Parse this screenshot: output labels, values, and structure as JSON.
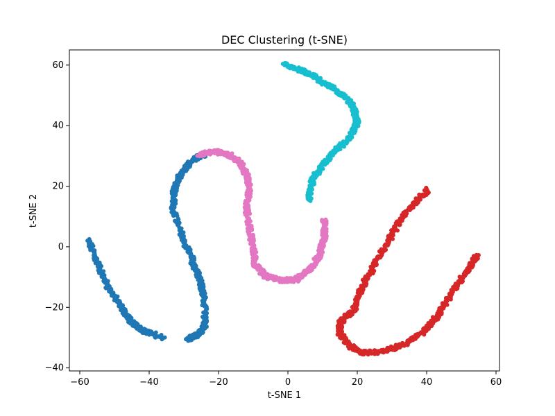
{
  "chart_data": {
    "type": "scatter",
    "title": "DEC Clustering (t-SNE)",
    "xlabel": "t-SNE 1",
    "ylabel": "t-SNE 2",
    "xlim": [
      -63,
      61
    ],
    "ylim": [
      -41,
      65
    ],
    "xticks": [
      -60,
      -40,
      -20,
      0,
      20,
      40,
      60
    ],
    "yticks": [
      -40,
      -20,
      0,
      20,
      40,
      60
    ],
    "grid": false,
    "legend": "none",
    "series": [
      {
        "color": "#1f77b4",
        "curve": [
          [
            -57.5,
            2
          ],
          [
            -55,
            -5
          ],
          [
            -52,
            -13
          ],
          [
            -48,
            -20
          ],
          [
            -45,
            -25
          ],
          [
            -41,
            -28
          ],
          [
            -36,
            -30
          ]
        ],
        "curve2": [
          [
            -29,
            -30.5
          ],
          [
            -26,
            -29
          ],
          [
            -24,
            -26
          ],
          [
            -24,
            -17
          ],
          [
            -25,
            -12
          ],
          [
            -27,
            -6
          ],
          [
            -30,
            2
          ],
          [
            -33,
            12
          ],
          [
            -33,
            18
          ],
          [
            -31,
            24
          ],
          [
            -27,
            29
          ],
          [
            -24,
            30.5
          ]
        ]
      },
      {
        "color": "#e377c2",
        "curve": [
          [
            -26,
            30.5
          ],
          [
            -21,
            31.5
          ],
          [
            -17,
            30.5
          ],
          [
            -14,
            28
          ],
          [
            -12,
            24
          ],
          [
            -11,
            19
          ],
          [
            -12,
            13
          ],
          [
            -11,
            6
          ],
          [
            -10,
            0
          ],
          [
            -9.5,
            -6
          ],
          [
            -6,
            -10
          ],
          [
            -2,
            -11
          ],
          [
            2,
            -11
          ],
          [
            6,
            -8
          ],
          [
            9,
            -3
          ],
          [
            10.5,
            3
          ],
          [
            10.5,
            9
          ]
        ]
      },
      {
        "color": "#17becf",
        "curve": [
          [
            -1.5,
            60.5
          ],
          [
            4,
            58
          ],
          [
            8,
            56
          ],
          [
            12,
            53
          ],
          [
            16,
            50
          ],
          [
            19,
            46
          ],
          [
            20,
            41
          ],
          [
            18,
            36
          ],
          [
            14,
            32
          ],
          [
            10,
            27
          ],
          [
            7,
            22
          ],
          [
            6,
            15
          ]
        ]
      },
      {
        "color": "#d62728",
        "curve": [
          [
            40.5,
            19
          ],
          [
            36,
            14
          ],
          [
            32,
            8
          ],
          [
            28,
            0
          ],
          [
            24,
            -8
          ],
          [
            21,
            -14
          ],
          [
            19,
            -21
          ],
          [
            15,
            -25
          ],
          [
            15,
            -29
          ],
          [
            18,
            -33
          ],
          [
            22,
            -35
          ],
          [
            28,
            -34.5
          ],
          [
            34,
            -32
          ],
          [
            39,
            -28
          ],
          [
            43,
            -23
          ],
          [
            47,
            -16
          ],
          [
            51,
            -9
          ],
          [
            54.5,
            -3
          ]
        ]
      }
    ]
  }
}
